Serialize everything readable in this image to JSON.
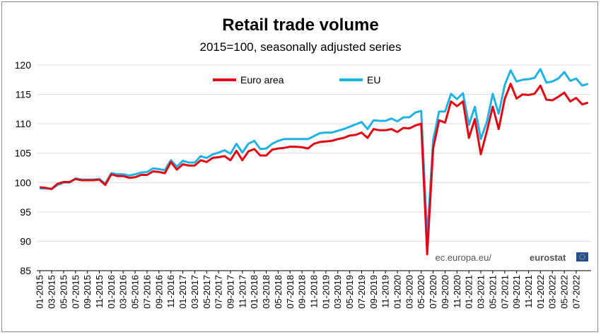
{
  "chart_data": {
    "type": "line",
    "title": "Retail trade volume",
    "subtitle": "2015=100, seasonally adjusted series",
    "ylim": [
      85,
      120
    ],
    "yticks": [
      85,
      90,
      95,
      100,
      105,
      110,
      115,
      120
    ],
    "grid": true,
    "legend_position": "top-center",
    "source": {
      "prefix": "ec.europa.eu/",
      "brand": "eurostat"
    },
    "x_tick_labels": [
      "01-2015",
      "03-2015",
      "05-2015",
      "07-2015",
      "09-2015",
      "11-2015",
      "01-2016",
      "03-2016",
      "05-2016",
      "07-2016",
      "09-2016",
      "11-2016",
      "01-2017",
      "03-2017",
      "05-2017",
      "07-2017",
      "09-2017",
      "11-2017",
      "01-2018",
      "03-2018",
      "05-2018",
      "07-2018",
      "09-2018",
      "11-2018",
      "01-2019",
      "03-2019",
      "05-2019",
      "07-2019",
      "09-2019",
      "11-2019",
      "01-2020",
      "03-2020",
      "05-2020",
      "07-2020",
      "09-2020",
      "11-2020",
      "01-2021",
      "03-2021",
      "05-2021",
      "07-2021",
      "09-2021",
      "11-2021",
      "01-2022",
      "03-2022",
      "05-2022",
      "07-2022"
    ],
    "series": [
      {
        "name": "Euro area",
        "color": "#e30613",
        "values": [
          99.2,
          99.1,
          98.9,
          99.8,
          100.1,
          100.1,
          100.6,
          100.4,
          100.4,
          100.4,
          100.5,
          99.6,
          101.4,
          101.1,
          101.1,
          100.8,
          100.9,
          101.3,
          101.3,
          101.9,
          101.8,
          101.6,
          103.5,
          102.2,
          103.1,
          102.9,
          102.9,
          103.8,
          103.5,
          104.2,
          104.3,
          104.5,
          103.8,
          105.4,
          103.8,
          105.3,
          105.7,
          104.6,
          104.6,
          105.6,
          105.8,
          105.9,
          106.1,
          106.1,
          106.0,
          105.8,
          106.6,
          106.9,
          107.0,
          107.1,
          107.4,
          107.6,
          108.0,
          108.1,
          108.5,
          107.6,
          109.1,
          108.9,
          108.9,
          109.1,
          108.6,
          109.3,
          109.2,
          109.7,
          110.0,
          87.8,
          105.8,
          110.6,
          110.2,
          113.8,
          113.0,
          113.8,
          107.6,
          110.8,
          104.8,
          108.7,
          112.9,
          109.1,
          114.2,
          116.8,
          114.3,
          115.0,
          114.9,
          115.1,
          116.5,
          114.1,
          114.0,
          114.6,
          115.3,
          113.8,
          114.4,
          113.3,
          113.6
        ]
      },
      {
        "name": "EU",
        "color": "#1fb3e5",
        "values": [
          99.0,
          99.0,
          98.9,
          99.6,
          100.0,
          100.0,
          100.7,
          100.5,
          100.5,
          100.5,
          100.6,
          99.8,
          101.6,
          101.4,
          101.4,
          101.2,
          101.4,
          101.7,
          101.8,
          102.4,
          102.3,
          102.1,
          103.8,
          102.7,
          103.7,
          103.4,
          103.4,
          104.5,
          104.2,
          104.8,
          105.1,
          105.5,
          104.9,
          106.6,
          105.1,
          106.6,
          107.1,
          105.7,
          105.8,
          106.6,
          107.1,
          107.4,
          107.4,
          107.4,
          107.4,
          107.4,
          107.9,
          108.4,
          108.5,
          108.5,
          108.8,
          109.1,
          109.5,
          109.9,
          110.3,
          109.1,
          110.6,
          110.5,
          110.5,
          110.9,
          110.4,
          111.1,
          111.1,
          111.9,
          112.2,
          90.5,
          107.2,
          112.1,
          112.1,
          115.1,
          114.2,
          115.2,
          109.8,
          112.9,
          107.4,
          110.3,
          115.1,
          111.7,
          116.6,
          119.1,
          117.2,
          117.5,
          117.6,
          117.8,
          119.3,
          117.0,
          117.2,
          117.7,
          118.8,
          117.3,
          117.7,
          116.5,
          116.8
        ]
      }
    ]
  }
}
